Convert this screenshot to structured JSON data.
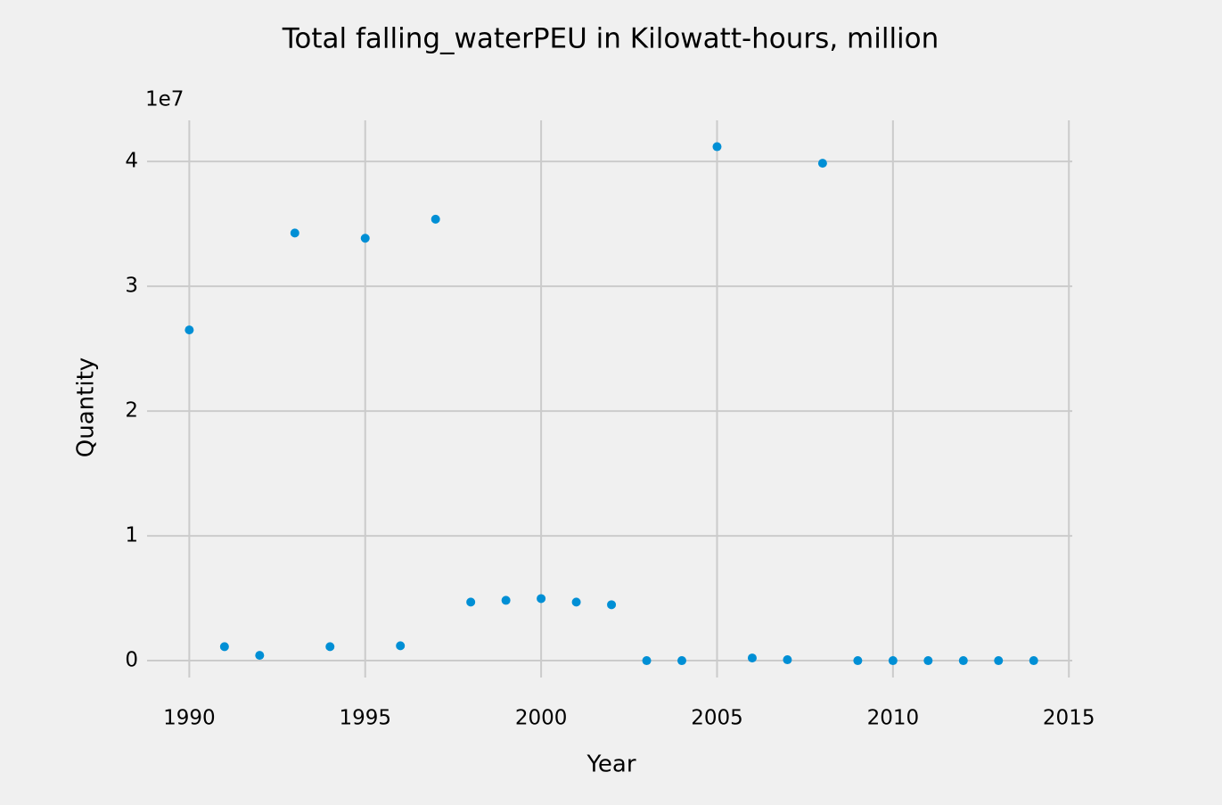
{
  "chart_data": {
    "type": "scatter",
    "title": "Total falling_waterPEU in Kilowatt-hours, million",
    "x_label": "Year",
    "y_label": "Quantity",
    "y_offset_label": "1e7",
    "x": [
      1990,
      1991,
      1992,
      1993,
      1994,
      1995,
      1996,
      1997,
      1998,
      1999,
      2000,
      2001,
      2002,
      2003,
      2004,
      2005,
      2006,
      2007,
      2008,
      2009,
      2010,
      2011,
      2012,
      2013,
      2014
    ],
    "series": [
      {
        "name": "Quantity",
        "color": "#008fd5",
        "values": [
          26500000,
          1120000,
          420000,
          34270000,
          1120000,
          33850000,
          1190000,
          35380000,
          4690000,
          4830000,
          4970000,
          4690000,
          4480000,
          0,
          0,
          41190000,
          210000,
          70000,
          39860000,
          0,
          0,
          0,
          0,
          0,
          0
        ]
      }
    ],
    "xlim": [
      1988.8,
      2015.4
    ],
    "xticks": [
      1990,
      1995,
      2000,
      2005,
      2010,
      2015
    ],
    "ylim": [
      -2070000,
      43300000
    ],
    "yticks": [
      {
        "value": 0,
        "label": "0"
      },
      {
        "value": 10000000,
        "label": "1"
      },
      {
        "value": 20000000,
        "label": "2"
      },
      {
        "value": 30000000,
        "label": "3"
      },
      {
        "value": 40000000,
        "label": "4"
      }
    ],
    "grid": true
  }
}
